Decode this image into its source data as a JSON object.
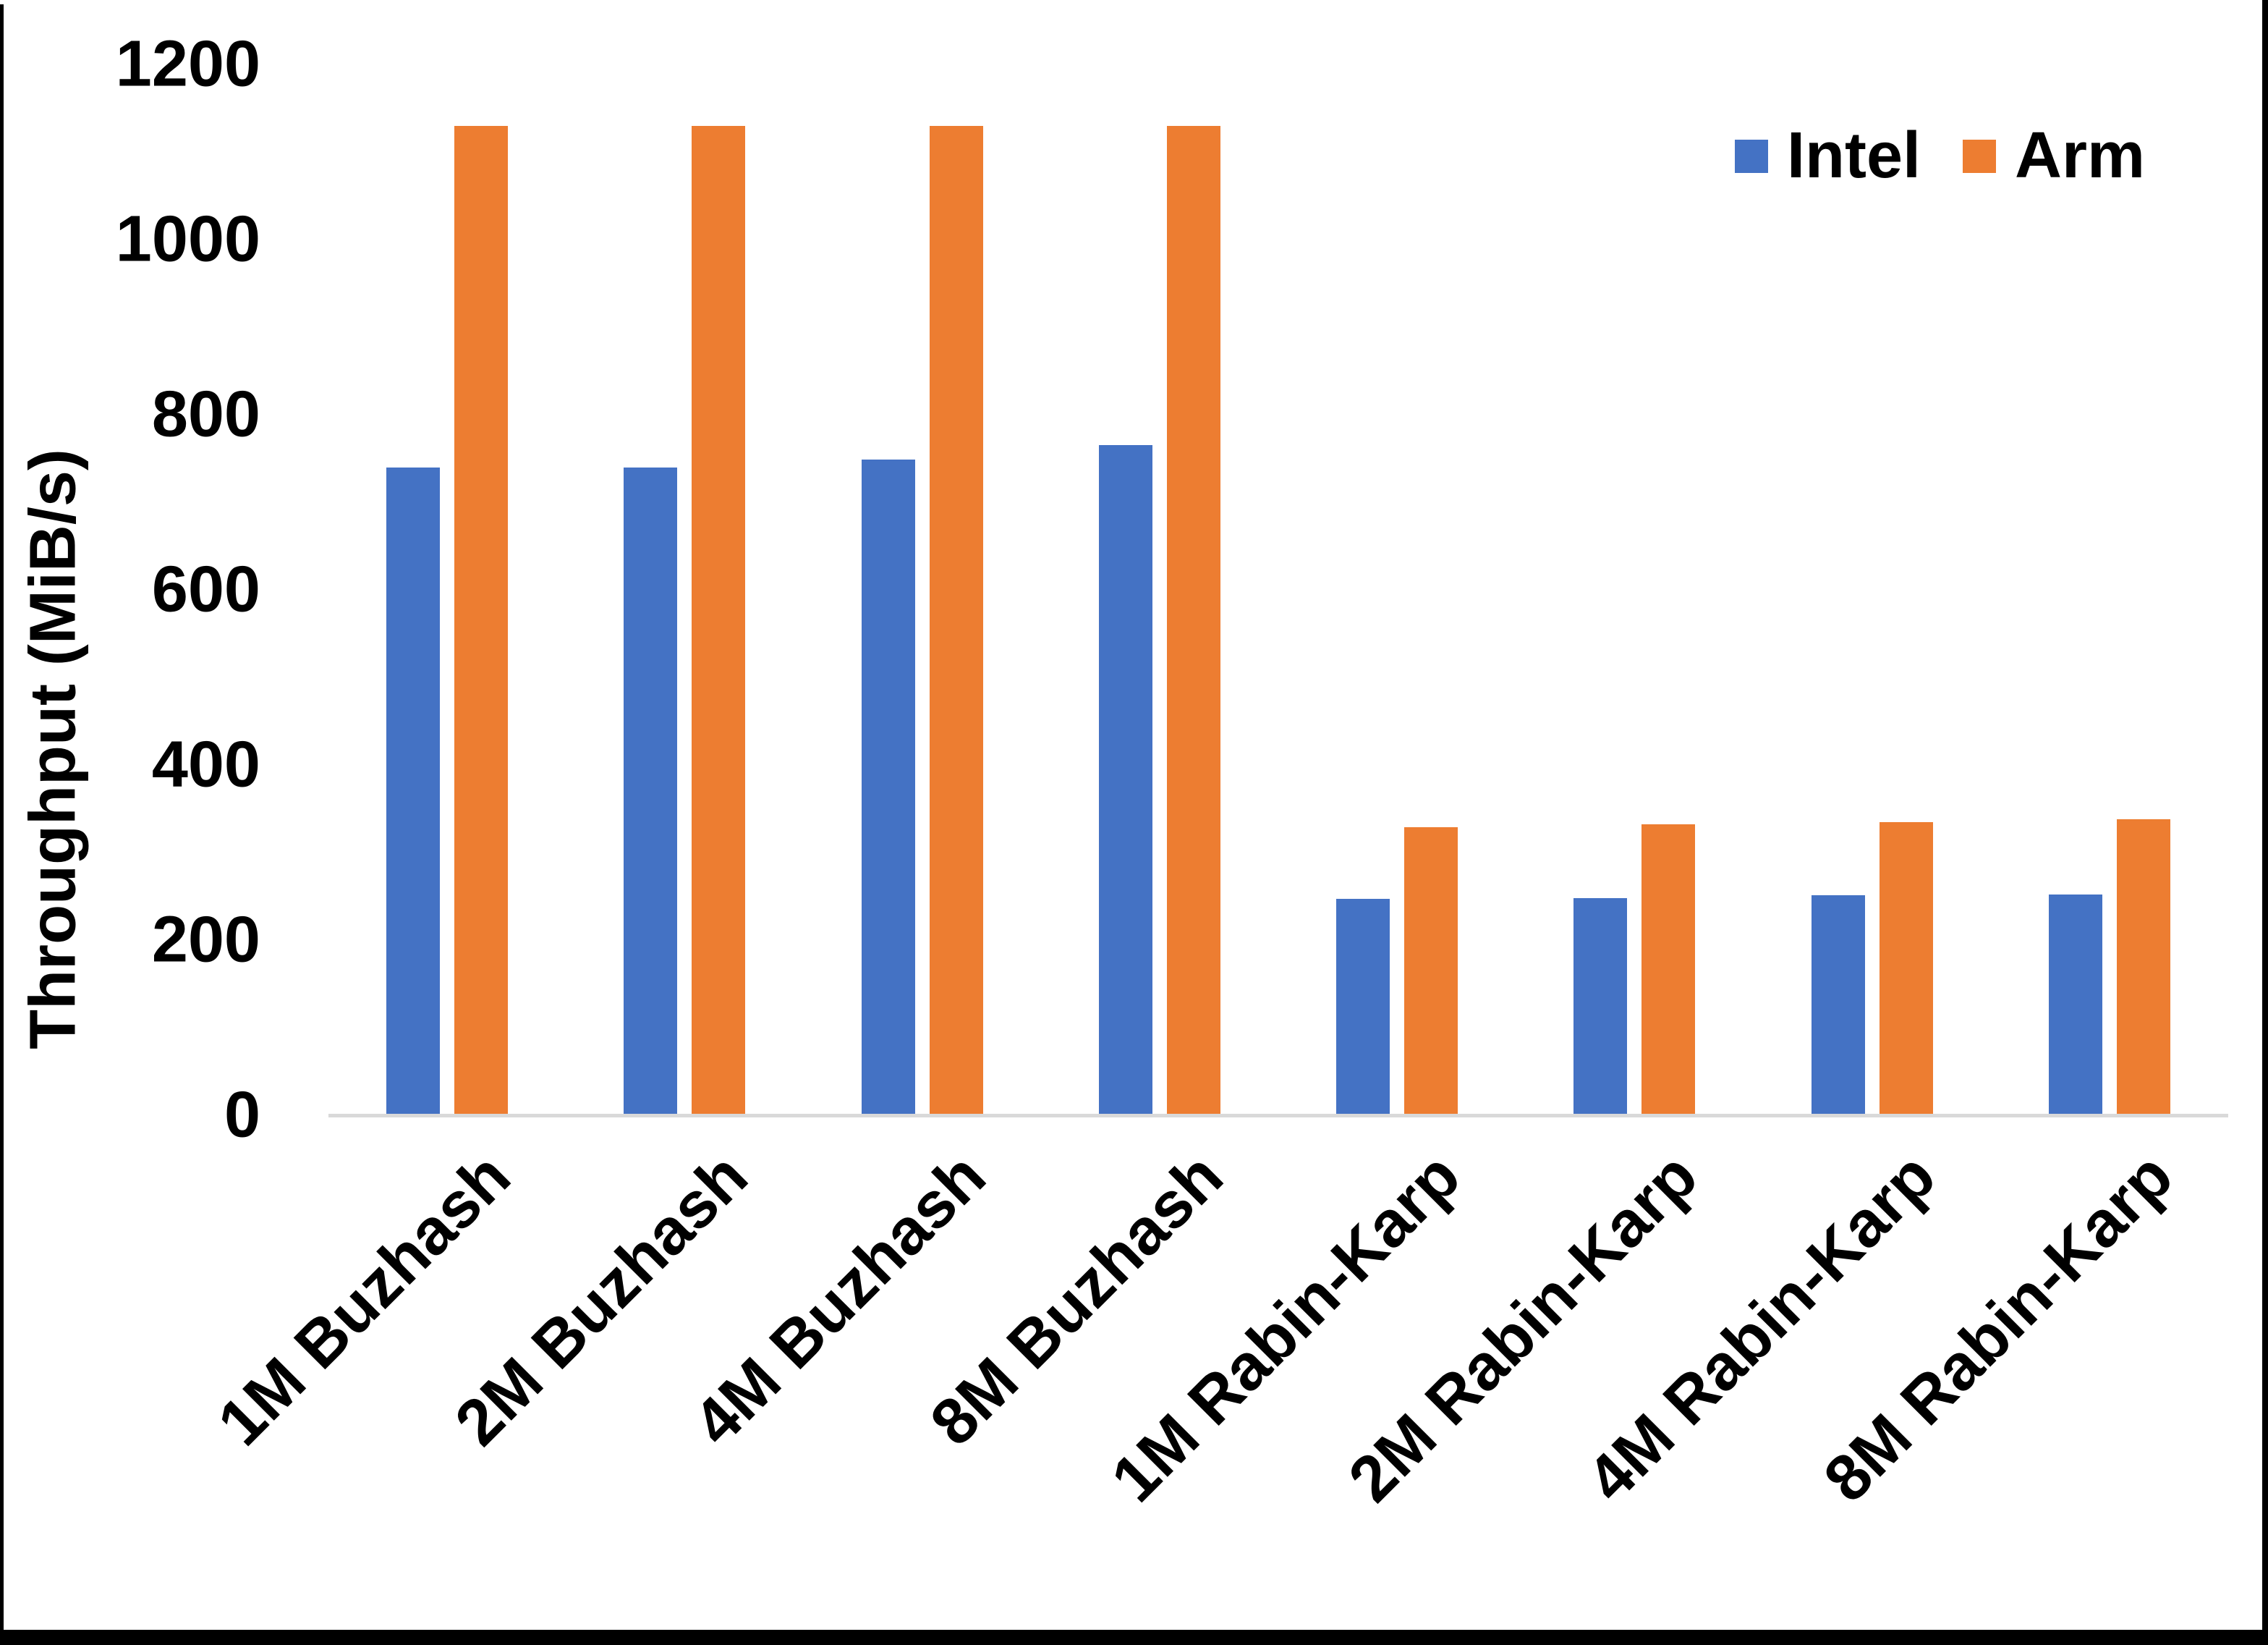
{
  "chart_data": {
    "type": "bar",
    "title": "",
    "xlabel": "",
    "ylabel": "Throughput (MiB/s)",
    "categories": [
      "1M Buzhash",
      "2M Buzhash",
      "4M Buzhash",
      "8M Buzhash",
      "1M Rabin-Karp",
      "2M Rabin-Karp",
      "4M Rabin-Karp",
      "8M Rabin-Karp"
    ],
    "series": [
      {
        "name": "Intel",
        "color": "#4472C4",
        "values": [
          740,
          740,
          749,
          765,
          247,
          248,
          251,
          252
        ]
      },
      {
        "name": "Arm",
        "color": "#ED7D31",
        "values": [
          1130,
          1130,
          1130,
          1130,
          329,
          332,
          335,
          338
        ]
      }
    ],
    "ylim": [
      0,
      1200
    ],
    "yticks": [
      0,
      200,
      400,
      600,
      800,
      1000,
      1200
    ],
    "grid": false,
    "legend_position": "top-right"
  },
  "colors": {
    "axis_line": "#D9D9D9",
    "text": "#000000",
    "background": "#FFFFFF",
    "page_border": "#000000"
  }
}
